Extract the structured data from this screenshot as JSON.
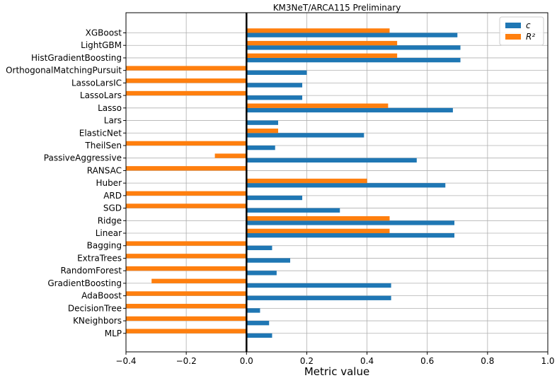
{
  "chart_data": {
    "type": "bar",
    "orientation": "horizontal",
    "title": "KM3NeT/ARCA115 Preliminary",
    "xlabel": "Metric value",
    "ylabel": "",
    "xlim": [
      -0.4,
      1.0
    ],
    "xticks": [
      -0.4,
      -0.2,
      0.0,
      0.2,
      0.4,
      0.6,
      0.8,
      1.0
    ],
    "xtick_labels": [
      "−0.4",
      "−0.2",
      "0.0",
      "0.2",
      "0.4",
      "0.6",
      "0.8",
      "1.0"
    ],
    "grid": true,
    "zero_line": true,
    "legend_position": "top-right",
    "categories": [
      "XGBoost",
      "LightGBM",
      "HistGradientBoosting",
      "OrthogonalMatchingPursuit",
      "LassoLarsIC",
      "LassoLars",
      "Lasso",
      "Lars",
      "ElasticNet",
      "TheilSen",
      "PassiveAggressive",
      "RANSAC",
      "Huber",
      "ARD",
      "SGD",
      "Ridge",
      "Linear",
      "Bagging",
      "ExtraTrees",
      "RandomForest",
      "GradientBoosting",
      "AdaBoost",
      "DecisionTree",
      "KNeighbors",
      "MLP"
    ],
    "series": [
      {
        "name": "c",
        "color": "#1f77b4",
        "values": [
          0.7,
          0.71,
          0.71,
          0.2,
          0.185,
          0.185,
          0.685,
          0.105,
          0.39,
          0.095,
          0.565,
          0.0,
          0.66,
          0.185,
          0.31,
          0.69,
          0.69,
          0.085,
          0.145,
          0.1,
          0.48,
          0.48,
          0.045,
          0.075,
          0.085
        ]
      },
      {
        "name": "R²",
        "color": "#ff7f0e",
        "values": [
          0.475,
          0.5,
          0.5,
          -0.4,
          -0.4,
          -0.4,
          0.47,
          0.0,
          0.105,
          -0.4,
          -0.105,
          -0.4,
          0.4,
          -0.4,
          -0.4,
          0.475,
          0.475,
          -0.4,
          -0.4,
          -0.4,
          -0.315,
          -0.4,
          -0.4,
          -0.4,
          -0.4
        ]
      }
    ],
    "legend": [
      {
        "label": "c",
        "color": "#1f77b4"
      },
      {
        "label": "R²",
        "color": "#ff7f0e"
      }
    ]
  }
}
